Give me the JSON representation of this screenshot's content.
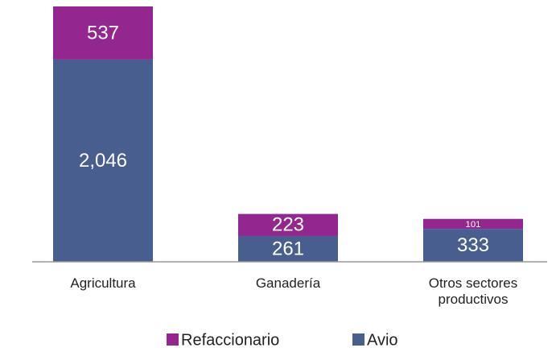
{
  "chart_data": {
    "type": "stacked_bar",
    "categories": [
      "Agricultura",
      "Ganadería",
      "Otros sectores productivos"
    ],
    "series": [
      {
        "name": "Avio",
        "color": "#475e8e",
        "values": [
          2046,
          261,
          333
        ],
        "value_labels": [
          "2,046",
          "261",
          "333"
        ]
      },
      {
        "name": "Refaccionario",
        "color": "#93278f",
        "values": [
          537,
          223,
          101
        ]
      }
    ],
    "legend": "bottom"
  }
}
